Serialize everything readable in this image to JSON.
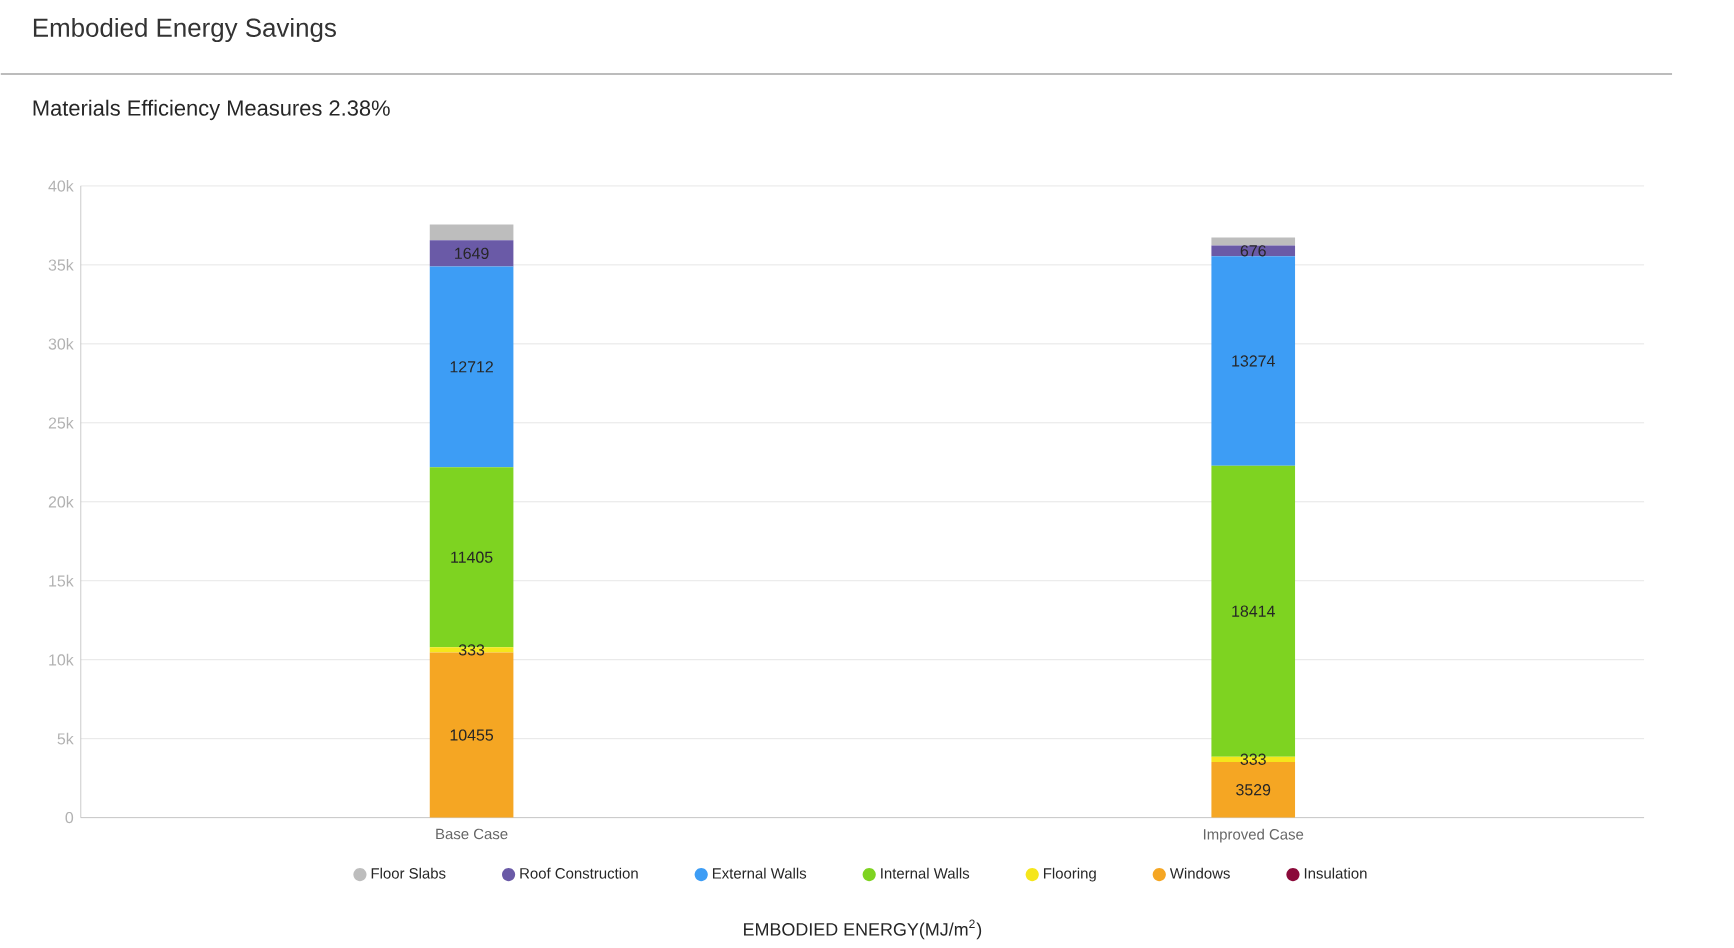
{
  "chart_data": {
    "type": "bar",
    "stacked": true,
    "title": "Embodied Energy Savings",
    "subtitle": "Materials Efficiency Measures  2.38%",
    "xlabel": "EMBODIED ENERGY(MJ/m$^{2}$)",
    "categories": [
      "Base Case",
      "Improved Case"
    ],
    "ylim": [
      0,
      40000
    ],
    "yticks": [
      0,
      {
        "value": 5000,
        "label": "5k"
      },
      {
        "value": 10000,
        "label": "10k"
      },
      {
        "value": 15000,
        "label": "15k"
      },
      {
        "value": 20000,
        "label": "20k"
      },
      {
        "value": 25000,
        "label": "25k"
      },
      {
        "value": 30000,
        "label": "30k"
      },
      {
        "value": 35000,
        "label": "35k"
      },
      {
        "value": 40000,
        "label": "40k"
      }
    ],
    "grid": "y",
    "legend": "bottom",
    "series": [
      {
        "name": "Insulation",
        "color": "#8b0a3a",
        "values": [
          null,
          null
        ]
      },
      {
        "name": "Windows",
        "color": "#f5a623",
        "values": [
          10455,
          3529
        ],
        "value_labels": [
          "10455",
          "3529"
        ]
      },
      {
        "name": "Flooring",
        "color": "#f5e61b",
        "values": [
          333,
          333
        ],
        "value_labels": [
          "333",
          "333"
        ]
      },
      {
        "name": "Internal Walls",
        "color": "#7ed321",
        "values": [
          11405,
          18414
        ],
        "value_labels": [
          "11405",
          "18414"
        ]
      },
      {
        "name": "External Walls",
        "color": "#3d9df5",
        "values": [
          12712,
          13274
        ],
        "value_labels": [
          "12712",
          "13274"
        ]
      },
      {
        "name": "Roof Construction",
        "color": "#6a5aa7",
        "values": [
          1649,
          676
        ],
        "value_labels": [
          "1649",
          "676"
        ]
      },
      {
        "name": "Floor Slabs",
        "color": "#bdbdbd",
        "values": [
          1000,
          500
        ]
      }
    ]
  }
}
